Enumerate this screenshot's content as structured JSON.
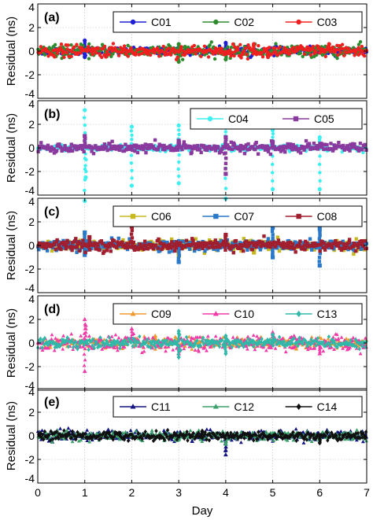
{
  "figure": {
    "xlabel": "Day",
    "ylabel": "Residual (ns)",
    "xticks": [
      "0",
      "1",
      "2",
      "3",
      "4",
      "5",
      "6",
      "7"
    ],
    "yticks": [
      "-4",
      "-2",
      "0",
      "2",
      "4"
    ]
  },
  "colors": {
    "C01": "#1f1fd6",
    "C02": "#2e8b2e",
    "C03": "#f02020",
    "C04": "#3cf0f0",
    "C05": "#8a3a9e",
    "C06": "#c8b820",
    "C07": "#2a78c8",
    "C08": "#a01e2e",
    "C09": "#f09a30",
    "C10": "#f03aa8",
    "C13": "#30b8a8",
    "C11": "#141482",
    "C12": "#3aa06a",
    "C14": "#101010"
  },
  "chart_data": [
    {
      "type": "scatter",
      "panel_label": "(a)",
      "xlabel": "",
      "ylabel": "Residual (ns)",
      "xlim": [
        0,
        7
      ],
      "ylim": [
        -4,
        4
      ],
      "grid": true,
      "legend": "top-right",
      "series": [
        {
          "name": "C01",
          "marker": "circle",
          "noise": 0.15,
          "spikes": [
            [
              1.0,
              0.9
            ],
            [
              1.0,
              -0.5
            ],
            [
              4.0,
              0.7
            ]
          ]
        },
        {
          "name": "C02",
          "marker": "circle",
          "noise": 0.25,
          "spikes": [
            [
              3.0,
              0.6
            ],
            [
              3.0,
              -0.9
            ],
            [
              4.0,
              -0.7
            ]
          ]
        },
        {
          "name": "C03",
          "marker": "circle",
          "noise": 0.25,
          "spikes": [
            [
              4.6,
              0.6
            ],
            [
              6.2,
              0.6
            ],
            [
              4.9,
              -0.5
            ]
          ]
        }
      ]
    },
    {
      "type": "scatter",
      "panel_label": "(b)",
      "xlabel": "",
      "ylabel": "Residual (ns)",
      "xlim": [
        0,
        7
      ],
      "ylim": [
        -4,
        4
      ],
      "grid": true,
      "legend": "top-right",
      "series": [
        {
          "name": "C04",
          "marker": "circle",
          "noise": 0.12,
          "spikes": [
            [
              1.0,
              3.2
            ],
            [
              1.0,
              -4.5
            ],
            [
              1.02,
              -2.5
            ],
            [
              2.0,
              1.8
            ],
            [
              2.0,
              -3.2
            ],
            [
              3.0,
              1.9
            ],
            [
              3.0,
              -3.0
            ],
            [
              4.0,
              1.7
            ],
            [
              4.0,
              -4.3
            ],
            [
              5.0,
              1.5
            ],
            [
              5.0,
              -3.5
            ],
            [
              6.0,
              0.9
            ],
            [
              6.0,
              -3.5
            ]
          ]
        },
        {
          "name": "C05",
          "marker": "square",
          "noise": 0.2,
          "spikes": [
            [
              1.0,
              1.0
            ],
            [
              3.0,
              0.6
            ],
            [
              4.0,
              0.9
            ],
            [
              4.0,
              -2.2
            ],
            [
              5.0,
              0.5
            ]
          ]
        }
      ]
    },
    {
      "type": "scatter",
      "panel_label": "(c)",
      "xlabel": "",
      "ylabel": "Residual (ns)",
      "xlim": [
        0,
        7
      ],
      "ylim": [
        -4,
        4
      ],
      "grid": true,
      "legend": "top-right",
      "series": [
        {
          "name": "C06",
          "marker": "square",
          "noise": 0.22,
          "spikes": [
            [
              3.0,
              -0.9
            ],
            [
              4.6,
              -0.6
            ]
          ]
        },
        {
          "name": "C07",
          "marker": "square",
          "noise": 0.22,
          "spikes": [
            [
              1.0,
              1.1
            ],
            [
              1.0,
              -0.8
            ],
            [
              3.0,
              -1.4
            ],
            [
              5.0,
              1.5
            ],
            [
              5.0,
              -1.0
            ],
            [
              6.0,
              1.4
            ],
            [
              6.0,
              -1.7
            ]
          ]
        },
        {
          "name": "C08",
          "marker": "square",
          "noise": 0.22,
          "spikes": [
            [
              2.0,
              1.6
            ],
            [
              4.0,
              0.9
            ],
            [
              1.1,
              0.7
            ]
          ]
        }
      ]
    },
    {
      "type": "scatter",
      "panel_label": "(d)",
      "xlabel": "",
      "ylabel": "Residual (ns)",
      "xlim": [
        0,
        7
      ],
      "ylim": [
        -4,
        4
      ],
      "grid": true,
      "legend": "top-right",
      "series": [
        {
          "name": "C09",
          "marker": "triangle",
          "noise": 0.22,
          "spikes": [
            [
              2.5,
              0.6
            ],
            [
              5.5,
              -0.5
            ]
          ]
        },
        {
          "name": "C10",
          "marker": "triangle",
          "noise": 0.32,
          "spikes": [
            [
              1.0,
              2.0
            ],
            [
              1.0,
              -2.4
            ],
            [
              1.02,
              1.5
            ],
            [
              2.0,
              1.2
            ],
            [
              3.0,
              -0.9
            ],
            [
              5.0,
              0.9
            ],
            [
              6.0,
              -0.9
            ]
          ]
        },
        {
          "name": "C13",
          "marker": "diamond",
          "noise": 0.22,
          "spikes": [
            [
              3.0,
              1.0
            ],
            [
              3.0,
              -1.2
            ],
            [
              4.0,
              0.6
            ],
            [
              4.0,
              -0.9
            ],
            [
              5.0,
              0.7
            ]
          ]
        }
      ]
    },
    {
      "type": "scatter",
      "panel_label": "(e)",
      "xlabel": "Day",
      "ylabel": "Residual (ns)",
      "xlim": [
        0,
        7
      ],
      "ylim": [
        -4,
        4
      ],
      "grid": true,
      "legend": "top-right",
      "series": [
        {
          "name": "C11",
          "marker": "triangle",
          "noise": 0.2,
          "spikes": [
            [
              4.0,
              -1.6
            ],
            [
              4.0,
              -1.2
            ],
            [
              1.5,
              0.5
            ]
          ]
        },
        {
          "name": "C12",
          "marker": "triangle",
          "noise": 0.2,
          "spikes": [
            [
              3.0,
              0.2
            ],
            [
              3.0,
              -0.3
            ],
            [
              4.0,
              -0.7
            ]
          ]
        },
        {
          "name": "C14",
          "marker": "diamond",
          "noise": 0.18,
          "spikes": [
            [
              6.0,
              -0.6
            ],
            [
              3.5,
              0.4
            ]
          ]
        }
      ]
    }
  ]
}
